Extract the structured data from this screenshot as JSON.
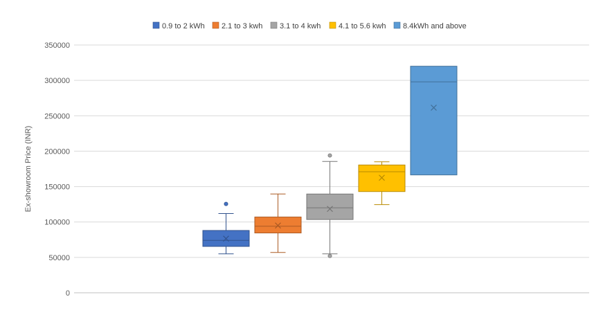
{
  "chart_data": {
    "type": "box",
    "title": "",
    "xlabel": "",
    "ylabel": "Ex-showroom Price (INR)",
    "ylim": [
      0,
      350000
    ],
    "yticks": [
      "0",
      "50000",
      "100000",
      "150000",
      "200000",
      "250000",
      "300000",
      "350000"
    ],
    "grid": true,
    "legend_position": "top",
    "series": [
      {
        "name": "0.9 to 2 kWh",
        "color": "#4472C4",
        "min": 55000,
        "q1": 65500,
        "median": 74000,
        "q3": 88000,
        "max": 112000,
        "mean": 76500,
        "outliers": [
          125500
        ]
      },
      {
        "name": "2.1 to 3 kwh",
        "color": "#ED7D31",
        "min": 57000,
        "q1": 84500,
        "median": 94000,
        "q3": 107000,
        "max": 139500,
        "mean": 95000,
        "outliers": []
      },
      {
        "name": "3.1 to 4 kwh",
        "color": "#A5A5A5",
        "min": 55000,
        "q1": 103500,
        "median": 120000,
        "q3": 139500,
        "max": 185500,
        "mean": 118500,
        "outliers": [
          194000,
          52000
        ]
      },
      {
        "name": "4.1 to 5.6 kwh",
        "color": "#FFC000",
        "min": 124500,
        "q1": 143000,
        "median": 171000,
        "q3": 180500,
        "max": 185000,
        "mean": 162500,
        "outliers": []
      },
      {
        "name": "8.4kWh and above",
        "color": "#5B9BD5",
        "min": 166500,
        "q1": 166500,
        "median": 298000,
        "q3": 320000,
        "max": 320000,
        "mean": 261500,
        "outliers": []
      }
    ]
  }
}
